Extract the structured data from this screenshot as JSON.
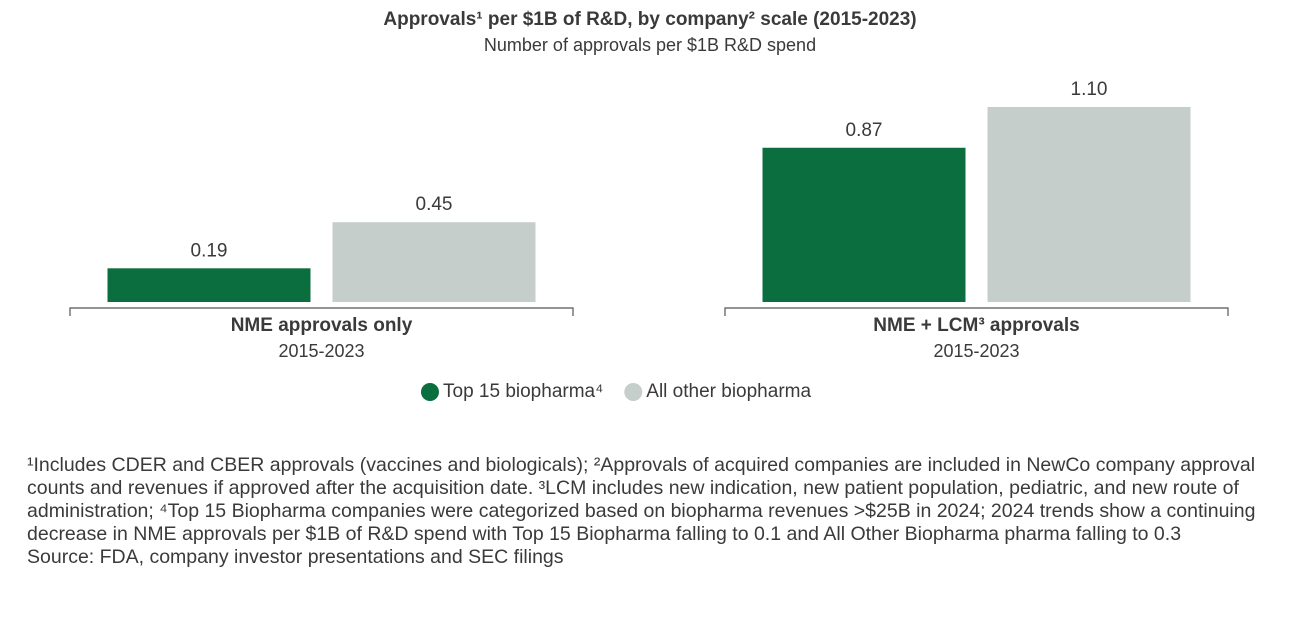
{
  "chart_data": {
    "type": "bar",
    "title": "Approvals¹ per $1B of R&D, by company² scale (2015-2023)",
    "subtitle": "Number of approvals per $1B R&D spend",
    "categories": [
      "NME approvals only",
      "NME + LCM³ approvals"
    ],
    "category_sublabels": [
      "2015-2023",
      "2015-2023"
    ],
    "series": [
      {
        "name": "Top 15 biopharma⁴",
        "color": "#0b6e3f",
        "values": [
          0.19,
          0.87
        ],
        "value_labels": [
          "0.19",
          "0.87"
        ]
      },
      {
        "name": "All other biopharma",
        "color": "#c5cecb",
        "values": [
          0.45,
          1.1
        ],
        "value_labels": [
          "0.45",
          "1.10"
        ]
      }
    ],
    "footnotes": "¹Includes CDER and CBER approvals (vaccines and biologicals); ²Approvals of acquired companies are included in NewCo company approval counts and revenues if approved after the acquisition date. ³LCM includes new indication, new patient population, pediatric, and new route of administration; ⁴Top 15 Biopharma companies were categorized based on biopharma revenues >$25B in 2024; 2024 trends show a continuing decrease in NME approvals per $1B of R&D spend with Top 15 Biopharma falling to 0.1 and All Other Biopharma pharma falling to 0.3",
    "source": "Source: FDA, company investor presentations and SEC filings"
  }
}
